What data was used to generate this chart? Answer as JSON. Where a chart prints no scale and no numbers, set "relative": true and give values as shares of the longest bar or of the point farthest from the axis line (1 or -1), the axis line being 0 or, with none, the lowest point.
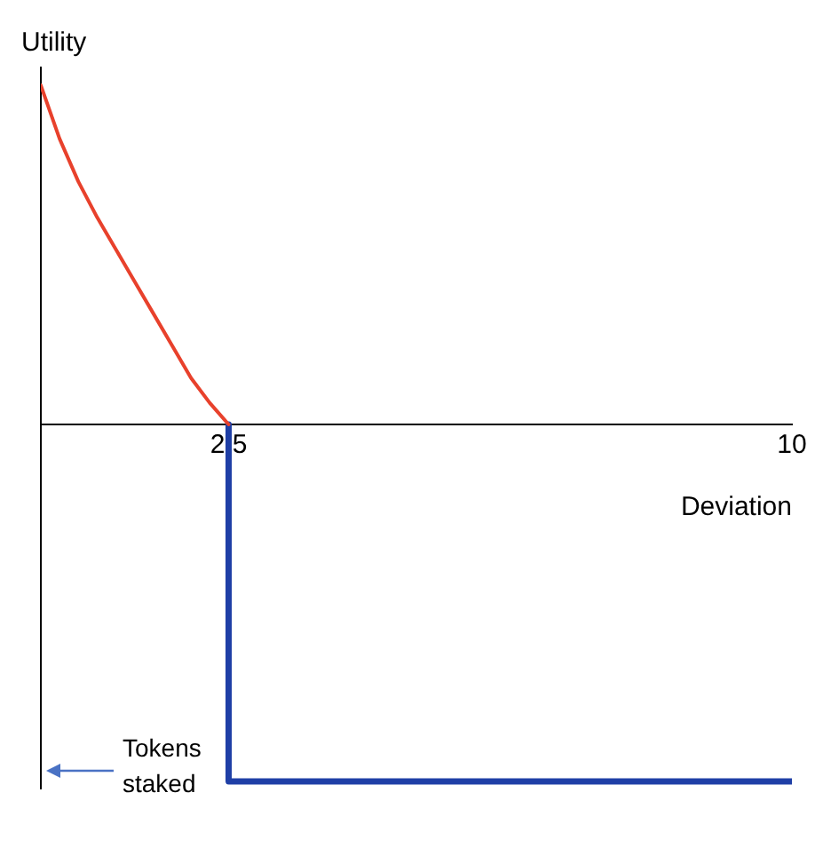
{
  "chart_data": {
    "type": "line",
    "relative": true,
    "xlabel": "Deviation",
    "ylabel": "Utility",
    "xlim": [
      0,
      10
    ],
    "xticks": [
      {
        "value": 2.5,
        "label": "2,5"
      },
      10
    ],
    "grid": false,
    "legend": false,
    "marker": "none",
    "line_style": "solid",
    "annotations": [
      "Tokens staked"
    ],
    "series": [
      {
        "color": "#e8412c",
        "x": [
          0,
          0.25,
          0.5,
          0.75,
          1,
          1.25,
          1.5,
          1.75,
          2,
          2.25,
          2.5
        ],
        "values": [
          0.95,
          0.8,
          0.68,
          0.58,
          0.49,
          0.4,
          0.31,
          0.22,
          0.13,
          0.06,
          0
        ]
      },
      {
        "type": "line",
        "color": "#1f3fa6",
        "x": [
          2.5,
          2.5,
          10
        ],
        "values": [
          0,
          -1,
          -1
        ]
      }
    ]
  }
}
